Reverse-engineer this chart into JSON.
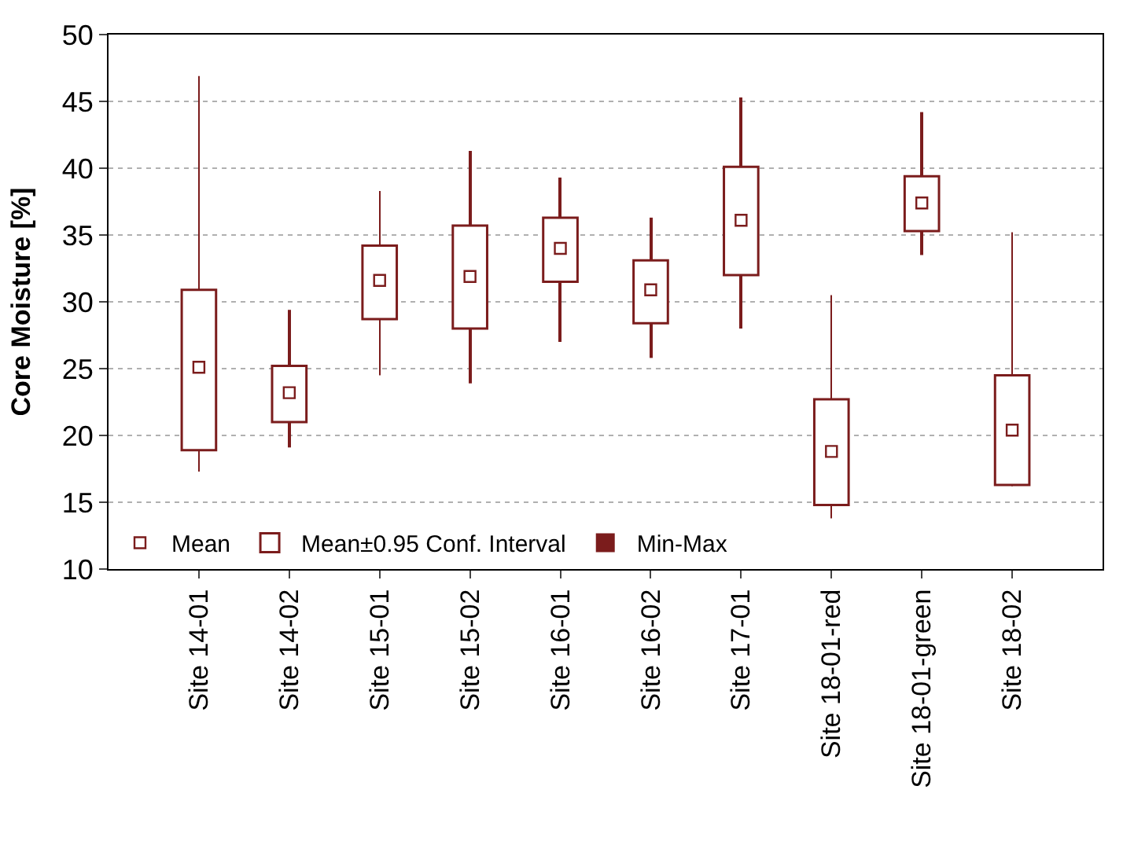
{
  "chart_data": {
    "type": "bar",
    "ylabel": "Core Moisture [%]",
    "categories": [
      "Site 14-01",
      "Site 14-02",
      "Site 15-01",
      "Site 15-02",
      "Site 16-01",
      "Site 16-02",
      "Site 17-01",
      "Site 18-01-red",
      "Site 18-01-green",
      "Site 18-02"
    ],
    "series": [
      {
        "name": "Mean",
        "type": "scatter",
        "marker": "square",
        "color": "#7b1c1c",
        "values": [
          25.1,
          23.2,
          31.6,
          31.9,
          34.0,
          30.9,
          36.1,
          18.8,
          37.4,
          20.4
        ]
      },
      {
        "name": "Mean±0.95 Conf. Interval",
        "color": "#7b1c1c",
        "base": [
          18.9,
          21.0,
          28.7,
          28.0,
          31.5,
          28.4,
          32.0,
          14.8,
          35.3,
          16.3
        ],
        "values": [
          12.0,
          4.2,
          5.5,
          7.7,
          4.8,
          4.7,
          8.1,
          7.9,
          4.1,
          8.2
        ]
      },
      {
        "name": "Min-Max",
        "color": "#7b1c1c",
        "base": [
          17.3,
          19.1,
          24.5,
          23.9,
          27.0,
          25.8,
          28.0,
          13.8,
          33.5,
          16.2
        ],
        "values": [
          29.6,
          10.3,
          13.8,
          17.4,
          12.3,
          10.5,
          17.3,
          16.7,
          10.7,
          19.0
        ]
      }
    ],
    "ylim": [
      10,
      50
    ],
    "yticks": [
      10,
      15,
      20,
      25,
      30,
      35,
      40,
      45,
      50
    ],
    "grid": "y",
    "legend": "bottom left"
  }
}
